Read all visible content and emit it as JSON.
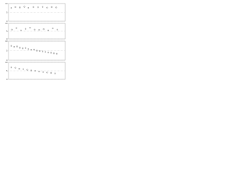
{
  "chart_data": [
    {
      "type": "scatter",
      "color": "#555",
      "xlim": [
        0,
        100
      ],
      "ylim": [
        0,
        10
      ],
      "yticks": [
        0,
        5,
        10
      ],
      "grid": true,
      "x": [
        5,
        12,
        20,
        28,
        35,
        44,
        52,
        60,
        68,
        76,
        84
      ],
      "y": [
        7.5,
        8,
        7.8,
        8.2,
        7.6,
        8,
        7.9,
        8.1,
        7.7,
        8,
        7.8
      ]
    },
    {
      "type": "scatter",
      "color": "#555",
      "xlim": [
        0,
        100
      ],
      "ylim": [
        0,
        10
      ],
      "yticks": [
        0,
        5,
        10
      ],
      "grid": true,
      "x": [
        6,
        14,
        22,
        30,
        38,
        46,
        54,
        62,
        70,
        78,
        86
      ],
      "y": [
        6,
        7,
        5.5,
        6.5,
        7.2,
        6,
        5.8,
        6.3,
        5.5,
        6.8,
        6
      ]
    },
    {
      "type": "scatter",
      "color": "#555",
      "xlim": [
        0,
        100
      ],
      "ylim": [
        0,
        10
      ],
      "yticks": [
        0,
        5,
        10
      ],
      "grid": true,
      "x": [
        5,
        10,
        15,
        20,
        25,
        30,
        35,
        40,
        45,
        50,
        55,
        60,
        65,
        70,
        75,
        80,
        85
      ],
      "y": [
        7.5,
        7,
        7.2,
        6.5,
        6.2,
        6.4,
        5.8,
        5.5,
        5.6,
        5,
        4.8,
        4.6,
        4.3,
        4,
        3.9,
        3.6,
        3.4
      ]
    },
    {
      "type": "scatter",
      "color": "#555",
      "xlim": [
        0,
        100
      ],
      "ylim": [
        0,
        10
      ],
      "yticks": [
        0,
        5,
        10
      ],
      "grid": true,
      "x": [
        5,
        12,
        19,
        26,
        33,
        40,
        47,
        54,
        61,
        68,
        75,
        82
      ],
      "y": [
        7,
        6.8,
        6.2,
        6,
        5.6,
        5.2,
        5,
        4.6,
        4.3,
        4,
        3.8,
        3.5
      ]
    }
  ]
}
